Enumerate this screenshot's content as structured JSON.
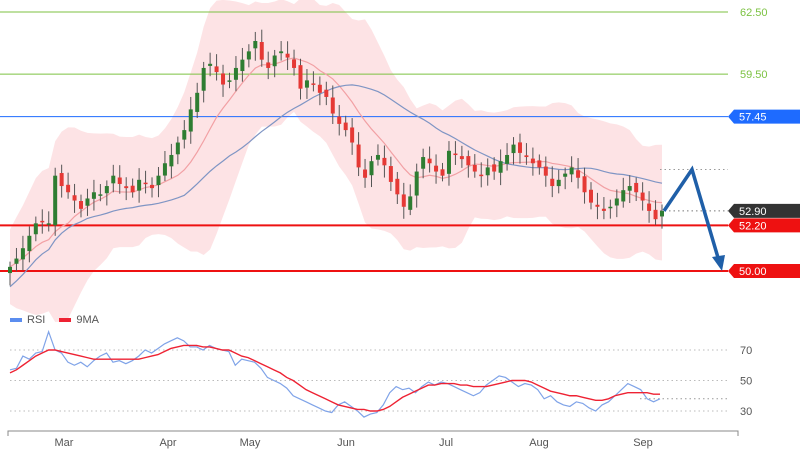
{
  "chart_data": [
    {
      "type": "candlestick",
      "title": "",
      "x_ticks": [
        "Mar",
        "Apr",
        "May",
        "Jun",
        "Jul",
        "Aug",
        "Sep"
      ],
      "x_tick_pos": [
        64,
        168,
        250,
        346,
        446,
        539,
        643
      ],
      "ylim": [
        48.9,
        63.2
      ],
      "price_levels": [
        {
          "value": 62.5,
          "label": "62.50",
          "color": "#7cc242",
          "style": "line-label"
        },
        {
          "value": 59.5,
          "label": "59.50",
          "color": "#7cc242",
          "style": "line-label"
        },
        {
          "value": 57.45,
          "label": "57.45",
          "color": "#1e6bff",
          "style": "tag"
        },
        {
          "value": 52.9,
          "label": "52.90",
          "color": "#333333",
          "style": "tag"
        },
        {
          "value": 52.2,
          "label": "52.20",
          "color": "#ee1111",
          "style": "tag"
        },
        {
          "value": 50.0,
          "label": "50.00",
          "color": "#ee1111",
          "style": "tag"
        }
      ],
      "series": [
        {
          "name": "Price (candles)",
          "values": [
            50.2,
            50.6,
            51.1,
            51.7,
            52.3,
            52.4,
            52.3,
            54.6,
            54.1,
            53.8,
            53.4,
            53.0,
            53.5,
            53.8,
            53.7,
            54.1,
            54.6,
            54.2,
            54.0,
            53.8,
            54.4,
            54.2,
            54.0,
            54.6,
            55.2,
            55.6,
            56.2,
            56.8,
            57.8,
            58.6,
            59.8,
            60.0,
            59.6,
            59.0,
            59.2,
            59.8,
            60.2,
            60.6,
            61.1,
            60.2,
            59.8,
            60.4,
            60.6,
            60.3,
            59.8,
            58.8,
            59.2,
            59.0,
            58.6,
            58.4,
            57.6,
            57.1,
            56.8,
            56.2,
            55.0,
            54.5,
            55.3,
            55.6,
            55.1,
            54.3,
            53.7,
            53.1,
            53.6,
            54.8,
            55.5,
            55.2,
            54.8,
            54.6,
            55.8,
            55.6,
            55.4,
            55.1,
            54.8,
            54.6,
            55.0,
            54.8,
            55.3,
            55.6,
            56.1,
            55.7,
            55.5,
            55.2,
            55.0,
            54.6,
            54.1,
            54.4,
            54.7,
            55.0,
            54.5,
            53.8,
            53.3,
            53.1,
            52.9,
            53.1,
            53.5,
            53.9,
            54.1,
            53.8,
            53.4,
            52.9,
            52.5,
            52.9
          ]
        },
        {
          "name": "MA (short, pink)",
          "values": []
        },
        {
          "name": "MA (long, blue)",
          "values": []
        }
      ],
      "projection": {
        "from": 52.9,
        "up_to": 54.9,
        "down_to": 50.0,
        "color": "#1f5fa8"
      }
    },
    {
      "type": "line",
      "title": "RSI",
      "legend": [
        {
          "name": "RSI",
          "color": "#5b8def"
        },
        {
          "name": "9MA",
          "color": "#ee2233"
        }
      ],
      "y_ticks": [
        70,
        50,
        30
      ],
      "ylim": [
        20,
        85
      ],
      "series": [
        {
          "name": "RSI",
          "values": [
            57,
            58,
            66,
            64,
            68,
            69,
            82,
            70,
            68,
            62,
            60,
            62,
            59,
            63,
            66,
            68,
            62,
            63,
            61,
            63,
            66,
            70,
            68,
            71,
            74,
            76,
            78,
            76,
            72,
            72,
            70,
            73,
            71,
            70,
            69,
            60,
            64,
            63,
            62,
            58,
            52,
            50,
            48,
            45,
            40,
            38,
            36,
            34,
            32,
            30,
            29,
            34,
            36,
            33,
            30,
            26,
            28,
            29,
            34,
            42,
            46,
            44,
            45,
            42,
            46,
            49,
            47,
            49,
            48,
            46,
            44,
            42,
            40,
            42,
            47,
            50,
            53,
            52,
            49,
            46,
            48,
            47,
            44,
            38,
            40,
            36,
            34,
            33,
            36,
            35,
            32,
            30,
            34,
            36,
            40,
            44,
            48,
            46,
            44,
            38,
            36,
            38
          ]
        },
        {
          "name": "9MA",
          "values": [
            55,
            57,
            60,
            63,
            66,
            68,
            70,
            70,
            69,
            68,
            67,
            66,
            65,
            64,
            64,
            64,
            64,
            64,
            64,
            64,
            64,
            65,
            66,
            67,
            69,
            71,
            72,
            73,
            73,
            73,
            72,
            72,
            71,
            70,
            70,
            68,
            66,
            65,
            63,
            61,
            59,
            57,
            55,
            52,
            50,
            47,
            44,
            42,
            40,
            38,
            36,
            34,
            33,
            32,
            31,
            31,
            30,
            30,
            31,
            33,
            36,
            39,
            41,
            43,
            45,
            47,
            47,
            48,
            48,
            48,
            47,
            47,
            46,
            46,
            46,
            47,
            48,
            49,
            50,
            50,
            50,
            49,
            47,
            45,
            43,
            42,
            41,
            40,
            40,
            39,
            38,
            37,
            37,
            38,
            40,
            41,
            42,
            42,
            42,
            42,
            41,
            41
          ]
        }
      ],
      "last_value_line": 38
    }
  ],
  "legend": {
    "rsi_label": "RSI",
    "ma_label": "9MA"
  },
  "colors": {
    "bull": "#2e7d32",
    "bear": "#e53935",
    "band": "#fde0e2",
    "ma_short": "#f2a0a4",
    "ma_long": "#7f95c4",
    "grid_dots": "#bbbbbb"
  }
}
